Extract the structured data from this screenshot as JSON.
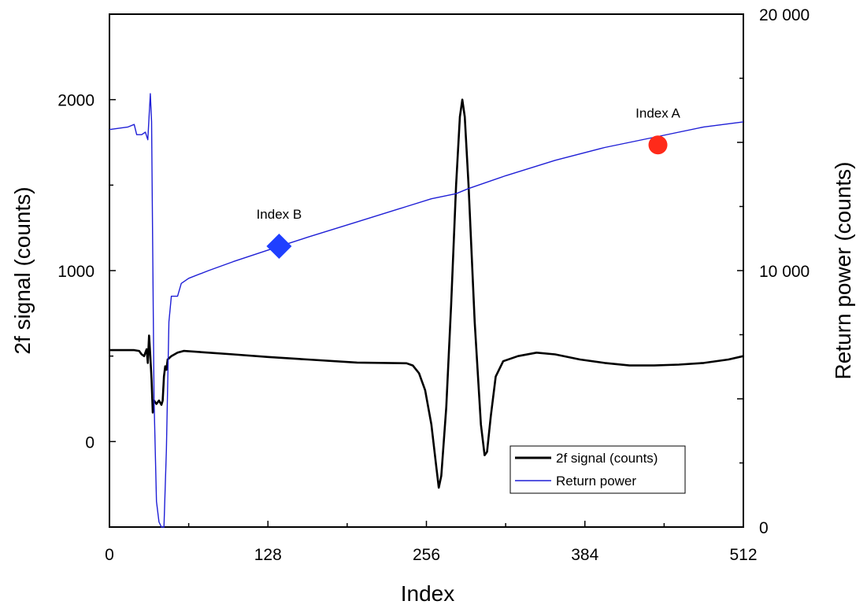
{
  "chart_data": {
    "type": "line",
    "xlabel": "Index",
    "ylabel": "2f signal (counts)",
    "y2label": "Return power (counts)",
    "xlim": [
      0,
      512
    ],
    "ylim": [
      -500,
      2500
    ],
    "y2lim": [
      0,
      20000
    ],
    "x_ticks": [
      0,
      128,
      256,
      384,
      512
    ],
    "x_tick_labels": [
      "0",
      "128",
      "256",
      "384",
      "512"
    ],
    "y_ticks": [
      0,
      1000,
      2000
    ],
    "y_tick_labels": [
      "0",
      "1000",
      "2000"
    ],
    "y2_ticks": [
      0,
      10000,
      20000
    ],
    "y2_tick_labels": [
      "0",
      "10 000",
      "20 000"
    ],
    "grid": false,
    "legend_position": "bottom-right",
    "series": [
      {
        "name": "2f signal (counts)",
        "axis": "left",
        "color": "#000000",
        "points": [
          [
            0,
            535
          ],
          [
            20,
            535
          ],
          [
            24,
            530
          ],
          [
            26,
            510
          ],
          [
            28,
            500
          ],
          [
            30,
            540
          ],
          [
            31,
            460
          ],
          [
            32,
            620
          ],
          [
            33,
            500
          ],
          [
            34,
            360
          ],
          [
            35,
            170
          ],
          [
            36,
            240
          ],
          [
            38,
            220
          ],
          [
            40,
            240
          ],
          [
            42,
            215
          ],
          [
            43,
            240
          ],
          [
            44,
            380
          ],
          [
            45,
            440
          ],
          [
            46,
            420
          ],
          [
            47,
            480
          ],
          [
            50,
            500
          ],
          [
            55,
            520
          ],
          [
            60,
            530
          ],
          [
            80,
            520
          ],
          [
            100,
            510
          ],
          [
            128,
            495
          ],
          [
            160,
            480
          ],
          [
            200,
            462
          ],
          [
            240,
            458
          ],
          [
            245,
            445
          ],
          [
            250,
            400
          ],
          [
            255,
            300
          ],
          [
            260,
            100
          ],
          [
            264,
            -150
          ],
          [
            266,
            -270
          ],
          [
            268,
            -200
          ],
          [
            272,
            200
          ],
          [
            276,
            800
          ],
          [
            280,
            1500
          ],
          [
            283,
            1900
          ],
          [
            285,
            2000
          ],
          [
            287,
            1900
          ],
          [
            290,
            1500
          ],
          [
            295,
            700
          ],
          [
            300,
            100
          ],
          [
            303,
            -80
          ],
          [
            305,
            -60
          ],
          [
            308,
            150
          ],
          [
            312,
            380
          ],
          [
            318,
            470
          ],
          [
            330,
            500
          ],
          [
            345,
            520
          ],
          [
            360,
            510
          ],
          [
            380,
            480
          ],
          [
            400,
            460
          ],
          [
            420,
            445
          ],
          [
            440,
            445
          ],
          [
            460,
            450
          ],
          [
            480,
            460
          ],
          [
            500,
            480
          ],
          [
            512,
            500
          ]
        ]
      },
      {
        "name": "Return power",
        "axis": "right",
        "color": "#1f1fd6",
        "points": [
          [
            0,
            15500
          ],
          [
            15,
            15600
          ],
          [
            20,
            15700
          ],
          [
            22,
            15300
          ],
          [
            26,
            15300
          ],
          [
            29,
            15400
          ],
          [
            31,
            15100
          ],
          [
            33,
            16900
          ],
          [
            34,
            15800
          ],
          [
            36,
            5000
          ],
          [
            38,
            1000
          ],
          [
            40,
            200
          ],
          [
            42,
            0
          ],
          [
            44,
            0
          ],
          [
            46,
            3000
          ],
          [
            48,
            8000
          ],
          [
            50,
            9000
          ],
          [
            53,
            9000
          ],
          [
            55,
            9000
          ],
          [
            58,
            9500
          ],
          [
            64,
            9700
          ],
          [
            80,
            10000
          ],
          [
            100,
            10350
          ],
          [
            128,
            10800
          ],
          [
            160,
            11300
          ],
          [
            200,
            11900
          ],
          [
            240,
            12500
          ],
          [
            260,
            12800
          ],
          [
            280,
            13000
          ],
          [
            290,
            13200
          ],
          [
            320,
            13700
          ],
          [
            360,
            14300
          ],
          [
            400,
            14800
          ],
          [
            440,
            15200
          ],
          [
            480,
            15600
          ],
          [
            512,
            15800
          ]
        ]
      }
    ],
    "annotations": [
      {
        "text": "Index A",
        "x": 443,
        "y2": 14900,
        "marker": "circle",
        "color": "#ff2a1a"
      },
      {
        "text": "Index B",
        "x": 137,
        "y2": 10950,
        "marker": "diamond",
        "color": "#1f3fff"
      }
    ]
  }
}
